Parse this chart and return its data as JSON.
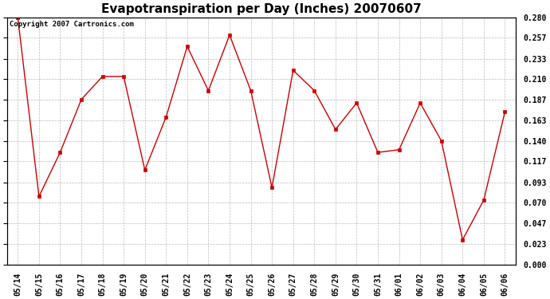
{
  "title": "Evapotranspiration per Day (Inches) 20070607",
  "copyright_text": "Copyright 2007 Cartronics.com",
  "line_color": "#cc0000",
  "marker": "s",
  "marker_size": 2.5,
  "background_color": "#ffffff",
  "grid_color": "#bbbbbb",
  "categories": [
    "05/14",
    "05/15",
    "05/16",
    "05/17",
    "05/18",
    "05/19",
    "05/20",
    "05/21",
    "05/22",
    "05/23",
    "05/24",
    "05/25",
    "05/26",
    "05/27",
    "05/28",
    "05/29",
    "05/30",
    "05/31",
    "06/01",
    "06/02",
    "06/03",
    "06/04",
    "06/05",
    "06/06"
  ],
  "values": [
    0.28,
    0.077,
    0.127,
    0.187,
    0.213,
    0.213,
    0.107,
    0.167,
    0.247,
    0.197,
    0.26,
    0.197,
    0.087,
    0.22,
    0.197,
    0.153,
    0.183,
    0.127,
    0.13,
    0.183,
    0.14,
    0.028,
    0.073,
    0.173
  ],
  "ylim": [
    0.0,
    0.28
  ],
  "yticks": [
    0.0,
    0.023,
    0.047,
    0.07,
    0.093,
    0.117,
    0.14,
    0.163,
    0.187,
    0.21,
    0.233,
    0.257,
    0.28
  ],
  "title_fontsize": 11,
  "tick_fontsize": 7,
  "copyright_fontsize": 6.5
}
